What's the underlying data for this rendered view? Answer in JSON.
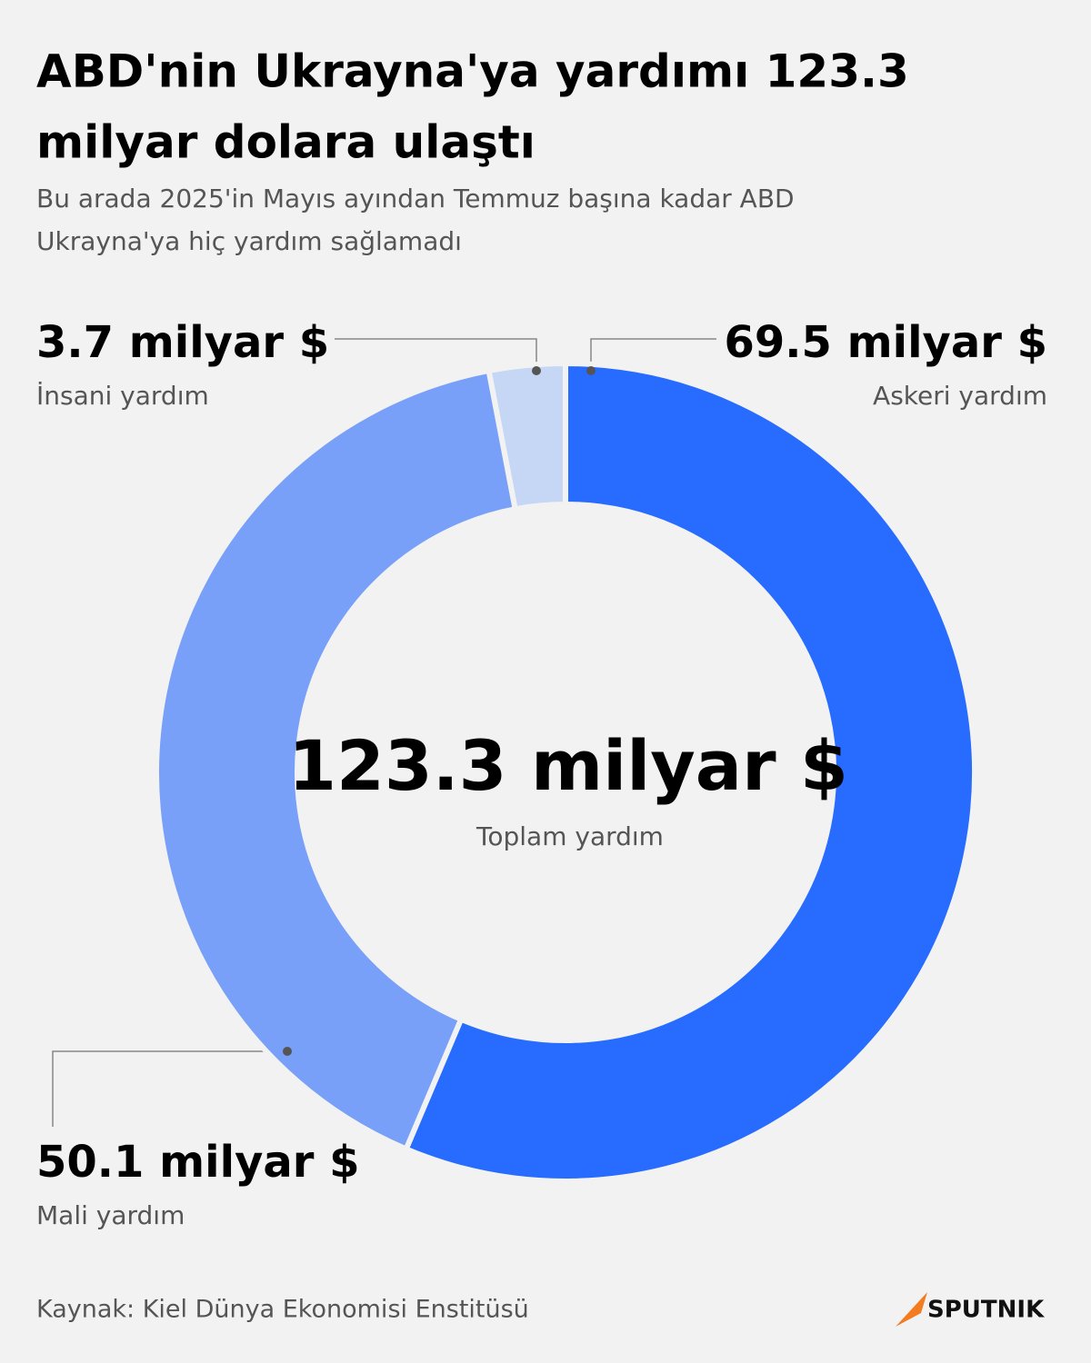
{
  "chart_data": {
    "type": "donut",
    "title": [
      "ABD'nin Ukrayna'ya yardımı 123.3",
      "milyar dolara ulaştı"
    ],
    "subtitle": [
      "Bu arada 2025'in Mayıs ayından Temmuz başına kadar ABD",
      "Ukrayna'ya hiç yardım sağlamadı"
    ],
    "categories": [
      "Askeri yardım",
      "Mali yardım",
      "İnsani yardım"
    ],
    "values": [
      69.5,
      50.1,
      3.7
    ],
    "value_labels": [
      "69.5 milyar $",
      "50.1 milyar $",
      "3.7 milyar $"
    ],
    "colors": [
      "#276bff",
      "#78a0f8",
      "#c6d6f5"
    ],
    "center_label": "123.3 milyar $",
    "center_sublabel": "Toplam yardım",
    "source": "Kaynak: Kiel Dünya Ekonomisi Enstitüsü",
    "brand": "SPUTNIK"
  }
}
